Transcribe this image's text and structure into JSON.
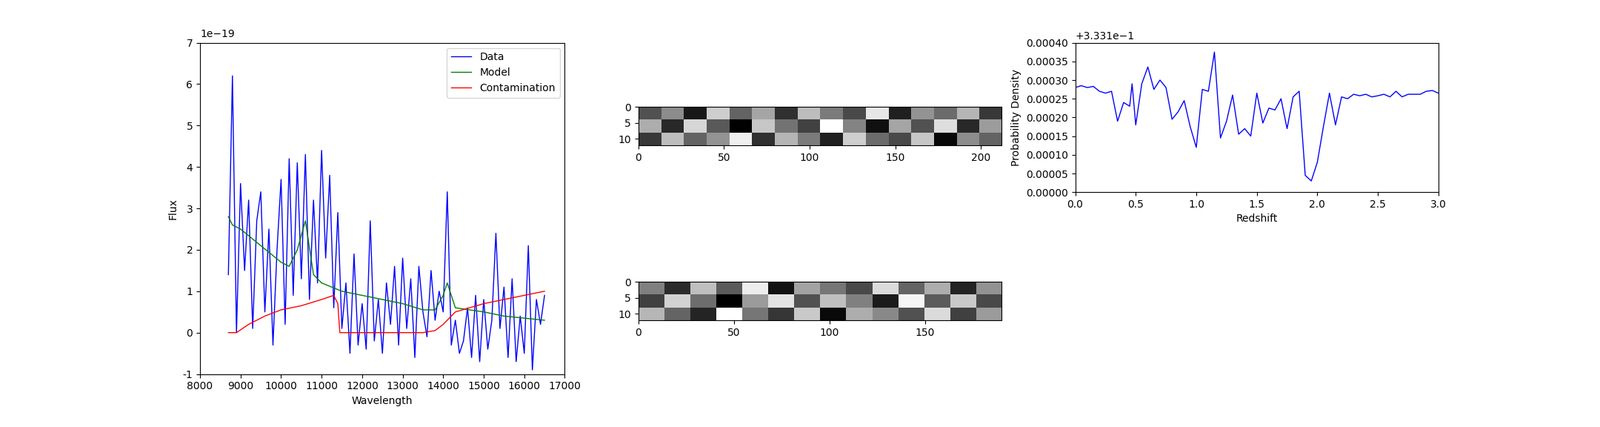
{
  "chart_data": [
    {
      "type": "line",
      "x_label": "Wavelength",
      "y_label": "Flux",
      "annotations": [
        "1e−19"
      ],
      "xlim": [
        8000,
        17000
      ],
      "ylim": [
        -1,
        7
      ],
      "xticks": [
        8000,
        9000,
        10000,
        11000,
        12000,
        13000,
        14000,
        15000,
        16000,
        17000
      ],
      "yticks": [
        -1,
        0,
        1,
        2,
        3,
        4,
        5,
        6,
        7
      ],
      "legend": "upper right",
      "series": [
        {
          "name": "Data",
          "color": "#0000ff",
          "x": [
            8700,
            8800,
            8900,
            9000,
            9100,
            9200,
            9300,
            9400,
            9500,
            9600,
            9700,
            9800,
            9900,
            10000,
            10100,
            10200,
            10300,
            10400,
            10500,
            10600,
            10700,
            10800,
            10900,
            11000,
            11100,
            11200,
            11300,
            11400,
            11500,
            11600,
            11700,
            11800,
            11900,
            12000,
            12100,
            12200,
            12300,
            12400,
            12500,
            12600,
            12700,
            12800,
            12900,
            13000,
            13100,
            13200,
            13300,
            13400,
            13500,
            13600,
            13700,
            13800,
            13900,
            14000,
            14100,
            14200,
            14300,
            14400,
            14500,
            14600,
            14700,
            14800,
            14900,
            15000,
            15100,
            15200,
            15300,
            15400,
            15500,
            15600,
            15700,
            15800,
            15900,
            16000,
            16100,
            16200,
            16300,
            16400,
            16500
          ],
          "values": [
            1.4,
            6.2,
            0.0,
            3.6,
            1.5,
            3.2,
            0.1,
            2.7,
            3.4,
            0.5,
            2.5,
            -0.3,
            2.0,
            3.7,
            0.2,
            4.2,
            0.9,
            4.1,
            1.3,
            4.3,
            0.8,
            3.2,
            1.2,
            4.4,
            1.8,
            3.8,
            0.6,
            2.9,
            0.1,
            1.2,
            -0.5,
            1.9,
            -0.3,
            0.7,
            -0.4,
            2.7,
            -0.2,
            0.8,
            -0.5,
            1.2,
            0.2,
            1.6,
            -0.3,
            1.8,
            0.1,
            1.3,
            -0.6,
            1.6,
            0.5,
            -0.1,
            1.5,
            0.3,
            1.0,
            0.5,
            3.4,
            -0.3,
            0.3,
            -0.5,
            -0.2,
            0.6,
            -0.6,
            0.9,
            -0.7,
            0.8,
            -0.4,
            0.3,
            2.4,
            0.1,
            1.1,
            -0.6,
            1.3,
            -0.7,
            0.4,
            -0.5,
            2.1,
            -0.9,
            0.8,
            0.2,
            0.9
          ]
        },
        {
          "name": "Model",
          "color": "#008000",
          "x": [
            8700,
            8800,
            9000,
            9500,
            10000,
            10200,
            10400,
            10600,
            10800,
            11000,
            11500,
            12000,
            12500,
            13000,
            13500,
            13800,
            14000,
            14100,
            14300,
            15000,
            15500,
            16000,
            16500
          ],
          "values": [
            2.8,
            2.6,
            2.5,
            2.1,
            1.7,
            1.6,
            2.0,
            2.7,
            1.4,
            1.2,
            1.0,
            0.9,
            0.8,
            0.7,
            0.55,
            0.55,
            0.9,
            1.2,
            0.6,
            0.5,
            0.4,
            0.35,
            0.3
          ]
        },
        {
          "name": "Contamination",
          "color": "#ff0000",
          "x": [
            8700,
            8900,
            9200,
            9600,
            10000,
            10500,
            11000,
            11300,
            11400,
            11450,
            12000,
            13000,
            13500,
            13800,
            14000,
            14300,
            15000,
            15500,
            16000,
            16500
          ],
          "values": [
            0,
            0,
            0.2,
            0.4,
            0.55,
            0.65,
            0.8,
            0.9,
            0.7,
            0,
            0,
            0,
            0,
            0.05,
            0.2,
            0.5,
            0.7,
            0.8,
            0.9,
            1.0
          ]
        }
      ]
    },
    {
      "type": "heatmap",
      "xlim": [
        0,
        212
      ],
      "ylim": [
        12,
        0
      ],
      "xticks": [
        0,
        50,
        100,
        150,
        200
      ],
      "yticks": [
        0,
        5,
        10
      ],
      "cells": [
        [
          0.45,
          0.52,
          0.38,
          0.6,
          0.47,
          0.55,
          0.41,
          0.58,
          0.5,
          0.44,
          0.63,
          0.39,
          0.53,
          0.48,
          0.57,
          0.42
        ],
        [
          0.56,
          0.4,
          0.61,
          0.46,
          0.35,
          0.59,
          0.49,
          0.43,
          0.66,
          0.51,
          0.37,
          0.55,
          0.45,
          0.62,
          0.4,
          0.54
        ],
        [
          0.42,
          0.58,
          0.47,
          0.53,
          0.64,
          0.41,
          0.57,
          0.5,
          0.39,
          0.6,
          0.48,
          0.44,
          0.59,
          0.36,
          0.52,
          0.47
        ]
      ]
    },
    {
      "type": "heatmap",
      "xlim": [
        0,
        190
      ],
      "ylim": [
        12,
        0
      ],
      "xticks": [
        0,
        50,
        100,
        150
      ],
      "yticks": [
        0,
        5,
        10
      ],
      "cells": [
        [
          0.5,
          0.41,
          0.57,
          0.46,
          0.62,
          0.38,
          0.54,
          0.49,
          0.44,
          0.6,
          0.47,
          0.55,
          0.4,
          0.52
        ],
        [
          0.43,
          0.59,
          0.48,
          0.36,
          0.53,
          0.61,
          0.45,
          0.57,
          0.5,
          0.39,
          0.63,
          0.46,
          0.58,
          0.44
        ],
        [
          0.56,
          0.47,
          0.4,
          0.64,
          0.49,
          0.42,
          0.58,
          0.37,
          0.55,
          0.51,
          0.45,
          0.6,
          0.43,
          0.53
        ]
      ]
    },
    {
      "type": "line",
      "x_label": "Redshift",
      "y_label": "Probability Density",
      "annotations": [
        "+3.331e−1"
      ],
      "color": "#0000ff",
      "xlim": [
        0.0,
        3.0
      ],
      "ylim": [
        0.0,
        0.0004
      ],
      "xticks": [
        {
          "value": 0.0,
          "label": "0.0"
        },
        0.5,
        {
          "value": 1.0,
          "label": "1.0"
        },
        1.5,
        {
          "value": 2.0,
          "label": "2.0"
        },
        2.5,
        {
          "value": 3.0,
          "label": "3.0"
        }
      ],
      "yticks": [
        {
          "value": 0.0,
          "label": "0.00000"
        },
        {
          "value": 5e-05,
          "label": "0.00005"
        },
        {
          "value": 0.0001,
          "label": "0.00010"
        },
        {
          "value": 0.00015,
          "label": "0.00015"
        },
        {
          "value": 0.0002,
          "label": "0.00020"
        },
        {
          "value": 0.00025,
          "label": "0.00025"
        },
        {
          "value": 0.0003,
          "label": "0.00030"
        },
        {
          "value": 0.00035,
          "label": "0.00035"
        },
        {
          "value": 0.0004,
          "label": "0.00040"
        }
      ],
      "x": [
        0.0,
        0.05,
        0.1,
        0.15,
        0.2,
        0.25,
        0.3,
        0.35,
        0.4,
        0.45,
        0.47,
        0.5,
        0.55,
        0.6,
        0.65,
        0.7,
        0.75,
        0.8,
        0.85,
        0.9,
        0.95,
        1.0,
        1.05,
        1.1,
        1.15,
        1.2,
        1.25,
        1.3,
        1.35,
        1.4,
        1.45,
        1.5,
        1.55,
        1.6,
        1.65,
        1.7,
        1.75,
        1.8,
        1.85,
        1.9,
        1.95,
        2.0,
        2.05,
        2.1,
        2.15,
        2.2,
        2.25,
        2.3,
        2.35,
        2.4,
        2.45,
        2.5,
        2.55,
        2.6,
        2.65,
        2.7,
        2.75,
        2.8,
        2.85,
        2.9,
        2.95,
        3.0
      ],
      "values": [
        0.00028,
        0.000285,
        0.00028,
        0.000283,
        0.00027,
        0.000265,
        0.00027,
        0.00019,
        0.00024,
        0.00023,
        0.00029,
        0.00018,
        0.00029,
        0.000335,
        0.000275,
        0.0003,
        0.00028,
        0.000195,
        0.000215,
        0.000245,
        0.000175,
        0.00012,
        0.000275,
        0.00027,
        0.000375,
        0.000145,
        0.00019,
        0.00026,
        0.000155,
        0.00017,
        0.00015,
        0.000265,
        0.000185,
        0.000225,
        0.00022,
        0.00025,
        0.00017,
        0.000255,
        0.00027,
        4.5e-05,
        3e-05,
        8e-05,
        0.000175,
        0.000265,
        0.00018,
        0.000255,
        0.00025,
        0.000262,
        0.000258,
        0.000262,
        0.000255,
        0.000258,
        0.000262,
        0.000255,
        0.00027,
        0.000255,
        0.000262,
        0.000262,
        0.000262,
        0.00027,
        0.000272,
        0.000265
      ]
    }
  ]
}
